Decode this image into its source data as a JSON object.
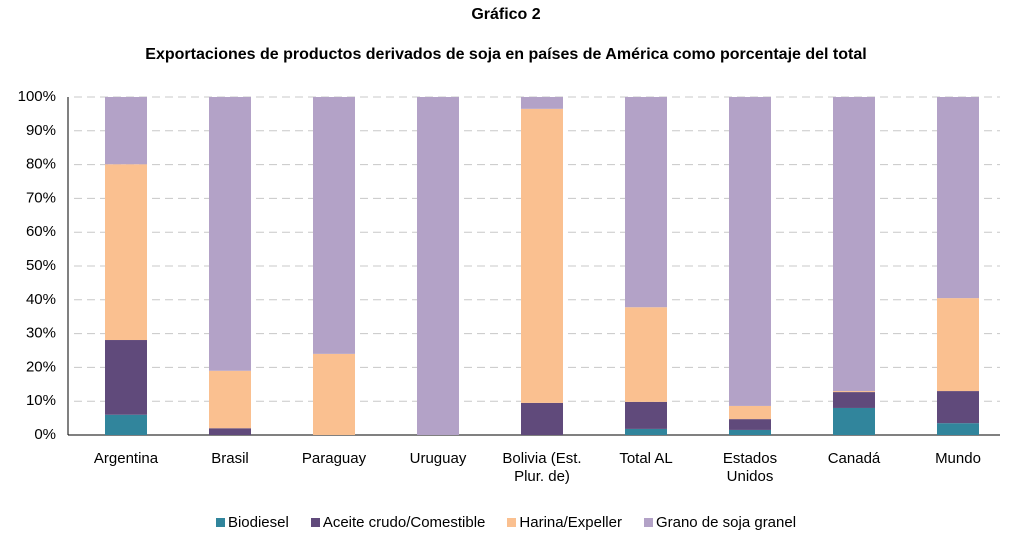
{
  "chart_data": {
    "type": "stacked_bar",
    "title": "Gráfico 2",
    "subtitle": "Exportaciones de productos derivados de soja en países de América como porcentaje del total",
    "categories": [
      "Argentina",
      "Brasil",
      "Paraguay",
      "Uruguay",
      "Bolivia (Est. Plur. de)",
      "Total AL",
      "Estados Unidos",
      "Canadá",
      "Mundo"
    ],
    "series": [
      {
        "name": "Biodiesel",
        "color": "#31859c",
        "values": [
          6,
          0,
          0,
          0,
          0,
          1.8,
          1.5,
          8,
          3.5
        ]
      },
      {
        "name": "Aceite crudo/Comestible",
        "color": "#604a7b",
        "values": [
          22.1,
          2,
          0,
          0,
          9.5,
          8,
          3.2,
          4.7,
          9.5
        ]
      },
      {
        "name": "Harina/Expeller",
        "color": "#fac090",
        "values": [
          52,
          17,
          24,
          0,
          87,
          28,
          3.9,
          0.3,
          27.5
        ]
      },
      {
        "name": "Grano de soja granel",
        "color": "#b3a2c7",
        "values": [
          19.9,
          81,
          76,
          100,
          3.5,
          62.2,
          91.4,
          87,
          59.5
        ]
      }
    ],
    "ylim": [
      0,
      100
    ],
    "yticks": [
      {
        "value": 0,
        "label": "0%"
      },
      {
        "value": 10,
        "label": "10%"
      },
      {
        "value": 20,
        "label": "20%"
      },
      {
        "value": 30,
        "label": "30%"
      },
      {
        "value": 40,
        "label": "40%"
      },
      {
        "value": 50,
        "label": "50%"
      },
      {
        "value": 60,
        "label": "60%"
      },
      {
        "value": 70,
        "label": "70%"
      },
      {
        "value": 80,
        "label": "80%"
      },
      {
        "value": 90,
        "label": "90%"
      },
      {
        "value": 100,
        "label": "100%"
      }
    ],
    "grid": true,
    "legend": "bottom"
  }
}
